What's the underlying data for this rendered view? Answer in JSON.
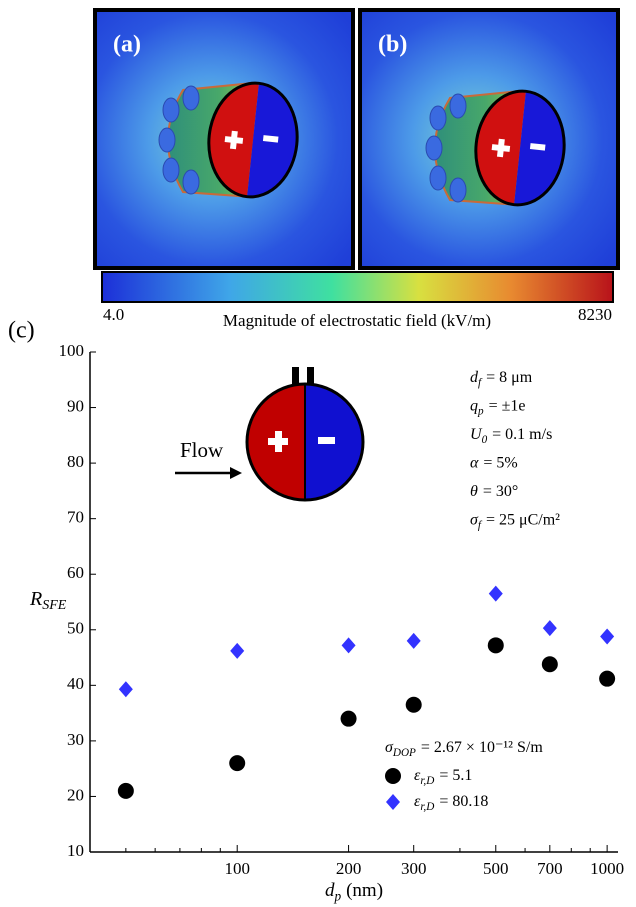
{
  "panels": [
    {
      "label": "(a)"
    },
    {
      "label": "(b)"
    }
  ],
  "colorbar": {
    "title": "Magnitude of electrostatic field (kV/m)",
    "ticks": [
      {
        "value": 4,
        "label": "4.0"
      },
      8230
    ]
  },
  "chart_data": {
    "type": "scatter",
    "panel_label": "(c)",
    "xlabel": {
      "symbol": "d",
      "sub": "p",
      "text": "(nm)"
    },
    "ylabel": {
      "symbol": "R",
      "sub": "SFE"
    },
    "x": [
      50,
      100,
      200,
      300,
      500,
      700,
      1000
    ],
    "series": [
      {
        "name": {
          "symbol": "ε",
          "sub": "r,D",
          "text": "= 5.1"
        },
        "color": "#000000",
        "marker": "circle",
        "values": [
          21,
          26,
          34,
          36.5,
          47.2,
          43.8,
          41.2
        ]
      },
      {
        "name": {
          "symbol": "ε",
          "sub": "r,D",
          "text": "= 80.18"
        },
        "color": "#3333ff",
        "marker": "diamond",
        "values": [
          39.3,
          46.2,
          47.2,
          48,
          56.5,
          50.3,
          48.8
        ]
      }
    ],
    "xlog": true,
    "xlim": [
      40,
      1070
    ],
    "xticks": [
      100,
      200,
      300,
      500,
      700,
      1000
    ],
    "xminor": [
      40,
      50,
      60,
      70,
      80,
      90,
      400,
      600,
      800,
      900
    ],
    "ylim": [
      10,
      100
    ],
    "yticks": [
      10,
      20,
      30,
      40,
      50,
      60,
      70,
      80,
      90,
      100
    ],
    "grid": false,
    "parameters": [
      {
        "symbol": "d",
        "sub": "f",
        "text": "= 8 μm"
      },
      {
        "symbol": "q",
        "sub": "p",
        "text": "= ±1e"
      },
      {
        "symbol": "U",
        "sub": "0",
        "text": "= 0.1 m/s"
      },
      {
        "symbol": "α",
        "text": "= 5%"
      },
      {
        "symbol": "θ",
        "text": "= 30°"
      },
      {
        "symbol": "σ",
        "sub": "f",
        "text": "= 25 μC/m²"
      }
    ],
    "legend_note": {
      "symbol": "σ",
      "sub": "DOP",
      "text": "= 2.67 × 10⁻¹² S/m"
    },
    "inset": {
      "flow_label": "Flow"
    }
  }
}
